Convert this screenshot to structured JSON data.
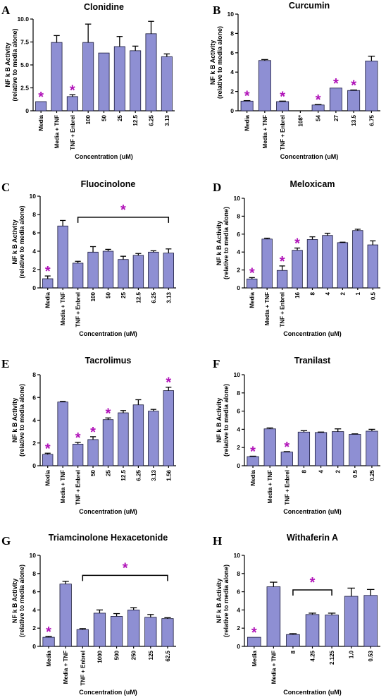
{
  "chart_data": [
    {
      "panel": "A",
      "type": "bar",
      "title": "Clonidine",
      "ylabel": "NF k B Activity (relative to media alone)",
      "xlabel": "Concentration (uM)",
      "ylim": [
        0,
        10.0
      ],
      "yticks": [
        0,
        2.5,
        5.0,
        7.5,
        10.0
      ],
      "ytick_labels": [
        "0",
        "2.5",
        "5.0",
        "7.5",
        "10.0"
      ],
      "categories": [
        "Media",
        "Media + TNF",
        "TNF + Enbrel",
        "100",
        "50",
        "25",
        "12.5",
        "6.25",
        "3.13"
      ],
      "values": [
        1.0,
        7.45,
        1.55,
        7.45,
        6.3,
        7.0,
        6.55,
        8.4,
        5.9
      ],
      "errors": [
        0.0,
        0.75,
        0.2,
        2.0,
        0.0,
        1.1,
        0.5,
        1.35,
        0.3
      ],
      "star_indices": [
        0,
        2
      ],
      "bracket": null
    },
    {
      "panel": "B",
      "type": "bar",
      "title": "Curcumin",
      "ylabel": "NF k B Activity (relative to media alone)",
      "xlabel": "Concentration (uM)",
      "ylim": [
        0,
        10
      ],
      "yticks": [
        0,
        2,
        4,
        6,
        8,
        10
      ],
      "ytick_labels": [
        "0",
        "2",
        "4",
        "6",
        "8",
        "10"
      ],
      "categories": [
        "Media",
        "Media + TNF",
        "TNF + Enbrel",
        "108*",
        "54",
        "27",
        "13.5",
        "6.75"
      ],
      "values": [
        1.0,
        5.2,
        0.95,
        0.0,
        0.6,
        2.35,
        2.1,
        5.15
      ],
      "errors": [
        0.05,
        0.1,
        0.05,
        0.0,
        0.05,
        0.0,
        0.05,
        0.5
      ],
      "star_indices": [
        0,
        2,
        4,
        5,
        6
      ],
      "bracket": null
    },
    {
      "panel": "C",
      "type": "bar",
      "title": "Fluocinolone",
      "ylabel": "NF k B Activity (relative to media alone)",
      "xlabel": "Concentration (uM)",
      "ylim": [
        0,
        10
      ],
      "yticks": [
        0,
        2,
        4,
        6,
        8,
        10
      ],
      "ytick_labels": [
        "0",
        "2",
        "4",
        "6",
        "8",
        "10"
      ],
      "categories": [
        "Media",
        "Media + TNF",
        "TNF + Enbrel",
        "100",
        "50",
        "25",
        "12.5",
        "6.25",
        "3.13"
      ],
      "values": [
        1.0,
        6.75,
        2.7,
        3.9,
        4.0,
        3.1,
        3.55,
        3.9,
        3.8
      ],
      "errors": [
        0.3,
        0.6,
        0.2,
        0.6,
        0.2,
        0.35,
        0.2,
        0.15,
        0.45
      ],
      "star_indices": [
        0
      ],
      "bracket": {
        "from": 2,
        "to": 8,
        "y": 7.7,
        "star": true
      }
    },
    {
      "panel": "D",
      "type": "bar",
      "title": "Meloxicam",
      "ylabel": "NF k B Activity (relative to media alone)",
      "xlabel": "Concentration (uM)",
      "ylim": [
        0,
        10
      ],
      "yticks": [
        0,
        2,
        4,
        6,
        8,
        10
      ],
      "ytick_labels": [
        "0",
        "2",
        "4",
        "6",
        "8",
        "10"
      ],
      "categories": [
        "Media",
        "Media + TNF",
        "TNF + Enbrel",
        "16",
        "8",
        "4",
        "2",
        "1",
        "0.5"
      ],
      "values": [
        1.0,
        5.45,
        1.95,
        4.2,
        5.4,
        5.85,
        5.05,
        6.4,
        4.8
      ],
      "errors": [
        0.15,
        0.1,
        0.5,
        0.25,
        0.3,
        0.25,
        0.05,
        0.15,
        0.45
      ],
      "star_indices": [
        0,
        2,
        3
      ],
      "bracket": null
    },
    {
      "panel": "E",
      "type": "bar",
      "title": "Tacrolimus",
      "ylabel": "NF k B Activity (relative to media alone)",
      "xlabel": "Concentration (uM)",
      "ylim": [
        0,
        8
      ],
      "yticks": [
        0,
        2,
        4,
        6,
        8
      ],
      "ytick_labels": [
        "0",
        "2",
        "4",
        "6",
        "8"
      ],
      "categories": [
        "Media",
        "Media + TNF",
        "TNF + Enbrel",
        "50",
        "25",
        "12.5",
        "6.25",
        "3.13",
        "1.56"
      ],
      "values": [
        1.0,
        5.6,
        1.9,
        2.3,
        4.05,
        4.65,
        5.35,
        4.8,
        6.6
      ],
      "errors": [
        0.1,
        0.05,
        0.15,
        0.25,
        0.15,
        0.2,
        0.45,
        0.15,
        0.3
      ],
      "star_indices": [
        0,
        2,
        3,
        4,
        8
      ],
      "bracket": null
    },
    {
      "panel": "F",
      "type": "bar",
      "title": "Tranilast",
      "ylabel": "NF k B Activity (relative to media alone)",
      "xlabel": "Concentration (uM)",
      "ylim": [
        0,
        10
      ],
      "yticks": [
        0,
        2,
        4,
        6,
        8,
        10
      ],
      "ytick_labels": [
        "0",
        "2",
        "4",
        "6",
        "8",
        "10"
      ],
      "categories": [
        "Media",
        "Media + TNF",
        "TNF + Enbrel",
        "8",
        "4",
        "2",
        "0.5",
        "0.25"
      ],
      "values": [
        1.0,
        4.05,
        1.5,
        3.7,
        3.65,
        3.75,
        3.45,
        3.8
      ],
      "errors": [
        0.05,
        0.1,
        0.05,
        0.15,
        0.05,
        0.3,
        0.05,
        0.2
      ],
      "star_indices": [
        0,
        2
      ],
      "bracket": null
    },
    {
      "panel": "G",
      "type": "bar",
      "title": "Triamcinolone Hexacetonide",
      "ylabel": "NF k B Activity (relative to media alone)",
      "xlabel": "Concentration (uM)",
      "ylim": [
        0,
        10
      ],
      "yticks": [
        0,
        2,
        4,
        6,
        8,
        10
      ],
      "ytick_labels": [
        "0",
        "2",
        "4",
        "6",
        "8",
        "10"
      ],
      "categories": [
        "Media",
        "Media + TNF",
        "TNF + Enbrel",
        "1000",
        "500",
        "250",
        "125",
        "62.5"
      ],
      "values": [
        1.0,
        6.85,
        1.85,
        3.65,
        3.3,
        4.0,
        3.2,
        3.05
      ],
      "errors": [
        0.1,
        0.3,
        0.1,
        0.35,
        0.3,
        0.25,
        0.3,
        0.1
      ],
      "star_indices": [
        0
      ],
      "bracket": {
        "from": 2,
        "to": 7,
        "y": 7.8,
        "star": true
      }
    },
    {
      "panel": "H",
      "type": "bar",
      "title": "Withaferin A",
      "ylabel": "NF k B Activity (relative to media alone)",
      "xlabel": "Concentration (uM)",
      "ylim": [
        0,
        10
      ],
      "yticks": [
        0,
        2,
        4,
        6,
        8,
        10
      ],
      "ytick_labels": [
        "0",
        "2",
        "4",
        "6",
        "8",
        "10"
      ],
      "categories": [
        "Media",
        "Media + TNF",
        "8",
        "4.25",
        "2.125",
        "1.0",
        "0.53"
      ],
      "values": [
        1.0,
        6.55,
        1.3,
        3.5,
        3.45,
        5.5,
        5.6
      ],
      "errors": [
        0.0,
        0.5,
        0.1,
        0.15,
        0.2,
        0.9,
        0.65
      ],
      "star_indices": [
        0
      ],
      "bracket": {
        "from": 2,
        "to": 4,
        "y": 6.2,
        "star": true
      }
    }
  ],
  "colors": {
    "bar": "#8e8fd3",
    "star": "#b012b8",
    "axis": "#000000"
  }
}
